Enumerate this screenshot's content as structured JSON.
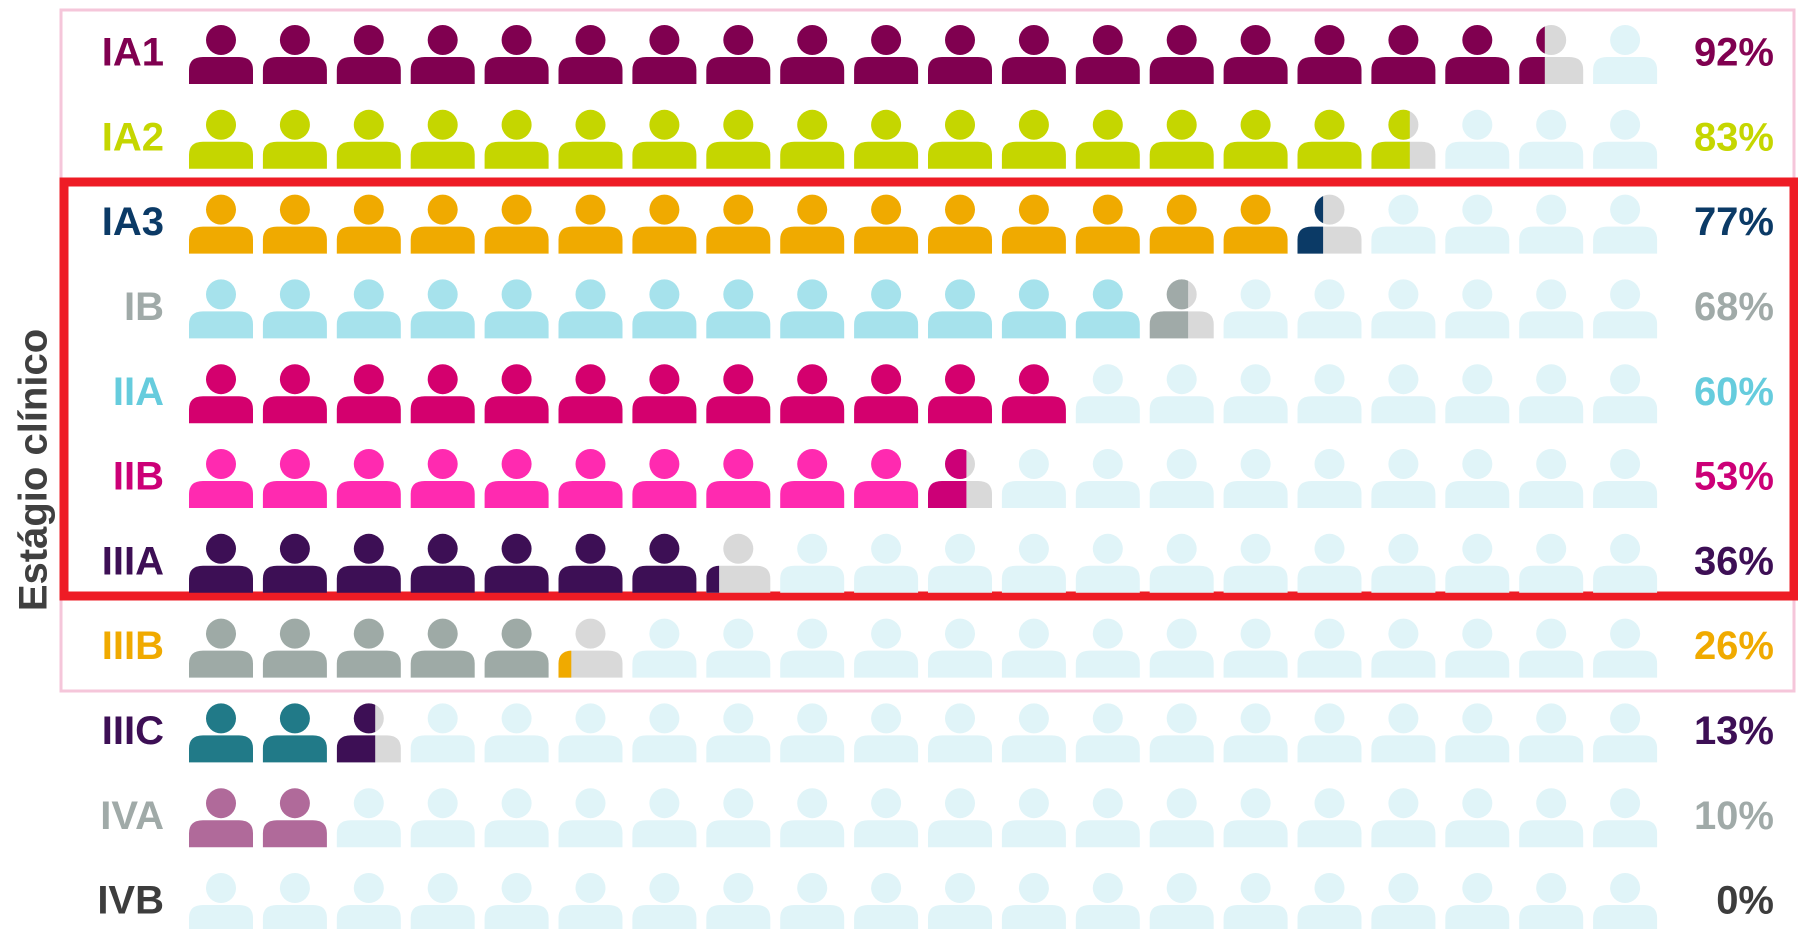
{
  "chart_data": {
    "type": "pictogram",
    "y_label": "Estágio clínico",
    "categories": [
      "IA1",
      "IA2",
      "IA3",
      "IB",
      "IIA",
      "IIB",
      "IIIA",
      "IIIB",
      "IIIC",
      "IVA",
      "IVB"
    ],
    "values": [
      92,
      83,
      77,
      68,
      60,
      53,
      36,
      26,
      13,
      10,
      0
    ],
    "value_labels": [
      "92%",
      "83%",
      "77%",
      "68%",
      "60%",
      "53%",
      "36%",
      "26%",
      "13%",
      "10%",
      "0%"
    ],
    "xlim": [
      0,
      100
    ],
    "icon_colors": [
      "#800050",
      "#c5d600",
      "#f0aa00",
      "#a6e2ec",
      "#d4006e",
      "#ff2ab0",
      "#3d0f55",
      "#9eaaa6",
      "#217a88",
      "#b06a9a",
      "#e0f4f8"
    ],
    "label_colors": [
      "#800050",
      "#c5d600",
      "#0b3a66",
      "#a0aaa8",
      "#66ccdd",
      "#cc0077",
      "#3d0f55",
      "#f0aa00",
      "#3d0f55",
      "#a0aaa8",
      "#3d3d3d"
    ]
  }
}
